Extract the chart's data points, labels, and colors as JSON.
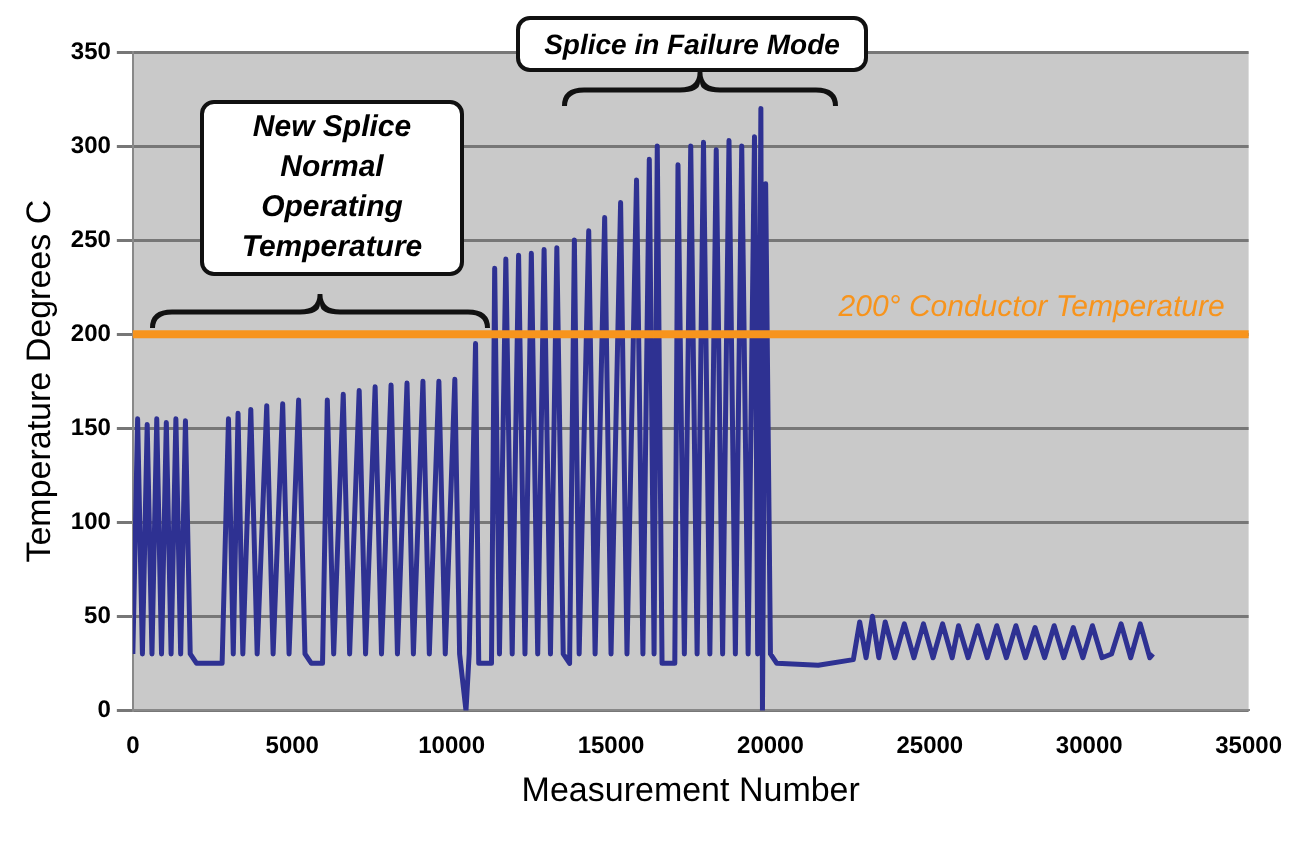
{
  "chart_data": {
    "type": "line",
    "xlabel": "Measurement Number",
    "ylabel": "Temperature Degrees C",
    "xlim": [
      0,
      35000
    ],
    "xticks": [
      0,
      5000,
      10000,
      15000,
      20000,
      25000,
      30000,
      35000
    ],
    "ylim": [
      0,
      350
    ],
    "yticks": [
      0,
      50,
      100,
      150,
      200,
      250,
      300,
      350
    ],
    "grid": "y",
    "legend": false,
    "marker": "none",
    "line_style": "solid",
    "annotations": [
      "New Splice Normal Operating Temperature",
      "Splice in Failure Mode"
    ],
    "ref_lines": [
      {
        "axis": "y",
        "value": 200,
        "label": "200° Conductor Temperature",
        "color": "#f7941d"
      }
    ],
    "series": [
      {
        "color": "#2e3192",
        "x": [
          0,
          150,
          300,
          450,
          600,
          750,
          900,
          1050,
          1200,
          1350,
          1500,
          1650,
          1800,
          2000,
          2800,
          3000,
          3150,
          3300,
          3450,
          3700,
          3900,
          4200,
          4400,
          4700,
          4900,
          5200,
          5400,
          5600,
          5950,
          6100,
          6300,
          6600,
          6800,
          7100,
          7300,
          7600,
          7800,
          8100,
          8300,
          8600,
          8800,
          9100,
          9300,
          9600,
          9800,
          10100,
          10250,
          10450,
          10550,
          10750,
          10850,
          11250,
          11350,
          11500,
          11700,
          11900,
          12100,
          12300,
          12500,
          12700,
          12900,
          13100,
          13300,
          13500,
          13700,
          13850,
          14000,
          14300,
          14500,
          14800,
          15000,
          15300,
          15500,
          15800,
          16000,
          16200,
          16350,
          16450,
          16600,
          17000,
          17100,
          17300,
          17500,
          17700,
          17900,
          18100,
          18300,
          18500,
          18700,
          18900,
          19100,
          19300,
          19500,
          19600,
          19700,
          19750,
          19850,
          20000,
          20200,
          21500,
          22600,
          22800,
          23000,
          23200,
          23400,
          23600,
          23900,
          24200,
          24500,
          24800,
          25100,
          25400,
          25700,
          25900,
          26200,
          26500,
          26800,
          27100,
          27400,
          27700,
          28000,
          28300,
          28600,
          28900,
          29200,
          29500,
          29800,
          30100,
          30400,
          30700,
          31000,
          31300,
          31600,
          31900,
          32000
        ],
        "values": [
          30,
          155,
          30,
          152,
          30,
          155,
          30,
          153,
          30,
          155,
          30,
          154,
          30,
          25,
          25,
          155,
          30,
          158,
          30,
          160,
          30,
          162,
          30,
          163,
          30,
          165,
          30,
          25,
          25,
          165,
          30,
          168,
          30,
          170,
          30,
          172,
          30,
          173,
          30,
          174,
          30,
          175,
          30,
          175,
          30,
          176,
          30,
          0,
          30,
          195,
          25,
          25,
          235,
          30,
          240,
          30,
          242,
          30,
          243,
          30,
          245,
          30,
          246,
          30,
          25,
          250,
          30,
          255,
          30,
          262,
          30,
          270,
          30,
          282,
          30,
          293,
          30,
          300,
          25,
          25,
          290,
          30,
          300,
          30,
          302,
          30,
          298,
          30,
          303,
          30,
          300,
          30,
          305,
          30,
          320,
          0,
          280,
          30,
          25,
          24,
          27,
          47,
          28,
          50,
          28,
          47,
          28,
          46,
          28,
          46,
          28,
          46,
          28,
          45,
          28,
          45,
          28,
          45,
          28,
          45,
          28,
          44,
          28,
          45,
          28,
          44,
          28,
          45,
          28,
          30,
          46,
          28,
          46,
          28,
          30
        ]
      }
    ]
  }
}
